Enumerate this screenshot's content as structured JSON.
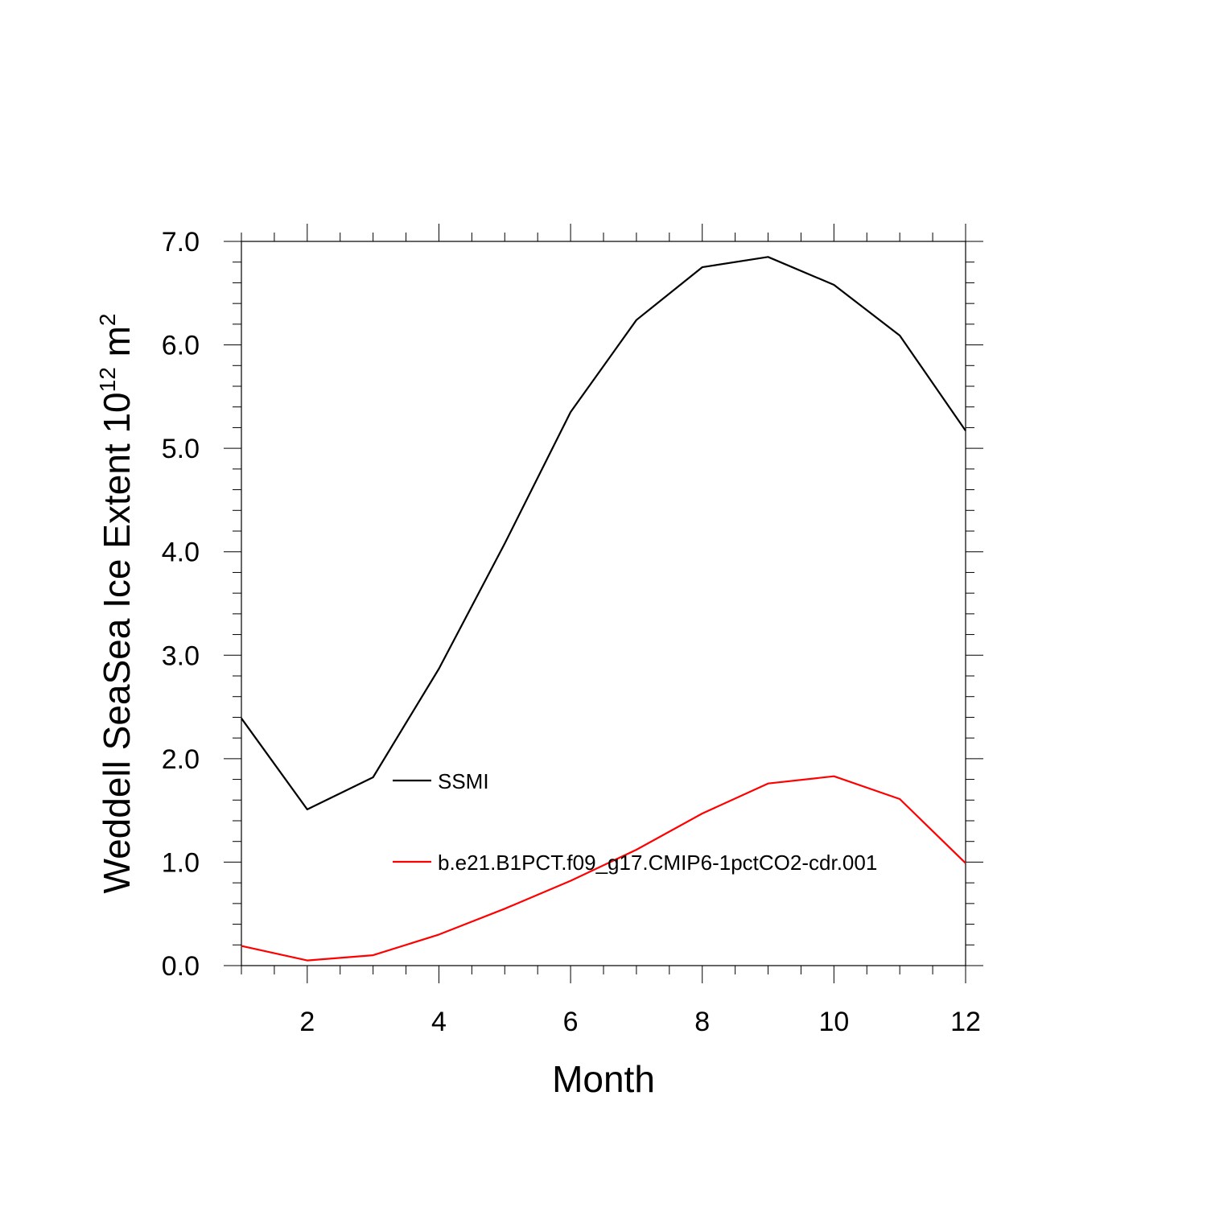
{
  "chart_data": {
    "type": "line",
    "xlabel": "Month",
    "ylabel": "Weddell SeaSea Ice Extent 10",
    "ylabel_exp": "12",
    "ylabel_unit": " m",
    "ylabel_unit_exp": "2",
    "xlim": [
      1,
      12
    ],
    "ylim": [
      0.0,
      7.0
    ],
    "x_ticks": [
      2,
      4,
      6,
      8,
      10,
      12
    ],
    "y_ticks": [
      "0.0",
      "1.0",
      "2.0",
      "3.0",
      "4.0",
      "5.0",
      "6.0",
      "7.0"
    ],
    "grid": false,
    "legend_placement": "inside-center",
    "x": [
      1,
      2,
      3,
      4,
      5,
      6,
      7,
      8,
      9,
      10,
      11,
      12
    ],
    "series": [
      {
        "name": "SSMI",
        "color": "#000000",
        "values": [
          2.39,
          1.51,
          1.82,
          2.87,
          4.08,
          5.35,
          6.24,
          6.75,
          6.85,
          6.58,
          6.09,
          5.17
        ]
      },
      {
        "name": "b.e21.B1PCT.f09_g17.CMIP6-1pctCO2-cdr.001",
        "color": "#ff0000",
        "values": [
          0.19,
          0.05,
          0.1,
          0.3,
          0.55,
          0.82,
          1.12,
          1.47,
          1.76,
          1.83,
          1.61,
          0.99
        ]
      }
    ]
  }
}
